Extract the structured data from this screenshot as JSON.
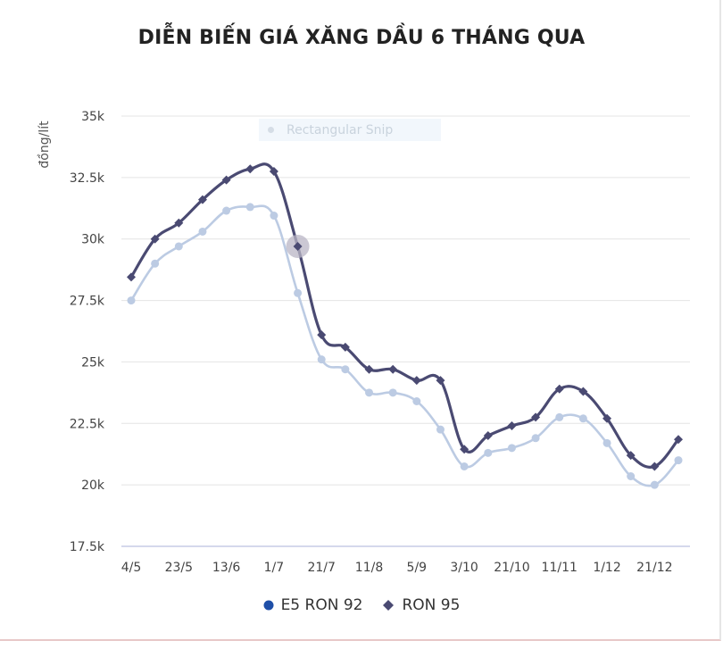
{
  "page": {
    "title": "DIỄN BIẾN GIÁ XĂNG DẦU 6 THÁNG QUA",
    "overlay_label": "Rectangular Snip"
  },
  "colors": {
    "ron95": "#4a4a72",
    "e5ron92": "#bccbe3",
    "e5_legend_marker": "#1f4fa8",
    "grid": "#e4e4e4",
    "axis": "#c7cbe6",
    "hover": "#b9b5c6"
  },
  "chart_data": {
    "type": "line",
    "title": "DIỄN BIẾN GIÁ XĂNG DẦU 6 THÁNG QUA",
    "xlabel": "",
    "ylabel": "đồng/lít",
    "ylim": [
      17500,
      35000
    ],
    "yticks": [
      17500,
      20000,
      22500,
      25000,
      27500,
      30000,
      32500,
      35000
    ],
    "ytick_labels": [
      "17.5k",
      "20k",
      "22.5k",
      "25k",
      "27.5k",
      "30k",
      "32.5k",
      "35k"
    ],
    "x_tick_labels": [
      "4/5",
      "23/5",
      "13/6",
      "1/7",
      "21/7",
      "11/8",
      "5/9",
      "3/10",
      "21/10",
      "11/11",
      "1/12",
      "21/12"
    ],
    "x_tick_indices": [
      0,
      2,
      4,
      6,
      8,
      10,
      12,
      14,
      16,
      18,
      20,
      22
    ],
    "grid": true,
    "legend_position": "bottom",
    "series": [
      {
        "name": "E5 RON 92",
        "values": [
          27500,
          29000,
          29700,
          30300,
          31150,
          31300,
          30950,
          27800,
          25100,
          24700,
          23750,
          23750,
          23400,
          22250,
          20750,
          21300,
          21500,
          21900,
          22750,
          22700,
          21700,
          20350,
          20000,
          21000
        ]
      },
      {
        "name": "RON 95",
        "values": [
          28450,
          30000,
          30650,
          31600,
          32400,
          32850,
          32750,
          29700,
          26100,
          25600,
          24700,
          24700,
          24250,
          24250,
          21450,
          22000,
          22400,
          22750,
          23900,
          23800,
          22700,
          21200,
          20750,
          21850
        ]
      }
    ],
    "highlighted_point": {
      "series": "RON 95",
      "index": 7
    }
  }
}
